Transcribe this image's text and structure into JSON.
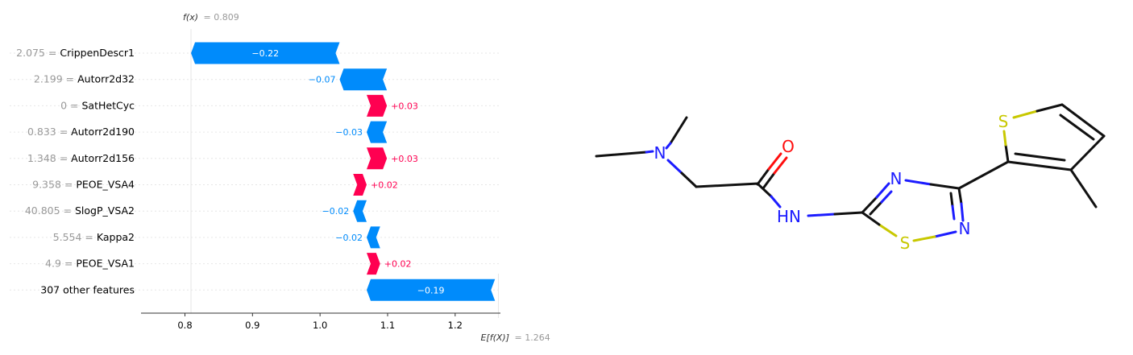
{
  "chart_data": {
    "type": "waterfall",
    "fx_label": "f(x)",
    "fx_value": "= 0.809",
    "fx": 0.809,
    "ex_label": "E[f(X)]",
    "ex_value": "= 1.264",
    "ex": 1.264,
    "xlim": [
      0.735,
      1.267
    ],
    "ticks": [
      "0.8",
      "0.9",
      "1.0",
      "1.1",
      "1.2"
    ],
    "tick_values": [
      0.8,
      0.9,
      1.0,
      1.1,
      1.2
    ],
    "colors": {
      "negative": "#008bfb",
      "positive": "#ff0051",
      "grid": "#e6e6e6",
      "value_label": "#999999"
    },
    "features": [
      {
        "value": "2.075",
        "name": "CrippenDescr1",
        "shap": -0.22,
        "label": "−0.22"
      },
      {
        "value": "2.199",
        "name": "Autorr2d32",
        "shap": -0.07,
        "label": "−0.07"
      },
      {
        "value": "0",
        "name": "SatHetCyc",
        "shap": 0.03,
        "label": "+0.03"
      },
      {
        "value": "0.833",
        "name": "Autorr2d190",
        "shap": -0.03,
        "label": "−0.03"
      },
      {
        "value": "1.348",
        "name": "Autorr2d156",
        "shap": 0.03,
        "label": "+0.03"
      },
      {
        "value": "9.358",
        "name": "PEOE_VSA4",
        "shap": 0.02,
        "label": "+0.02"
      },
      {
        "value": "40.805",
        "name": "SlogP_VSA2",
        "shap": -0.02,
        "label": "−0.02"
      },
      {
        "value": "5.554",
        "name": "Kappa2",
        "shap": -0.02,
        "label": "−0.02"
      },
      {
        "value": "4.9",
        "name": "PEOE_VSA1",
        "shap": 0.02,
        "label": "+0.02"
      },
      {
        "value": "",
        "name": "307 other features",
        "shap": -0.19,
        "label": "−0.19"
      }
    ]
  },
  "molecule": {
    "atom_labels": [
      "N",
      "O",
      "HN",
      "N",
      "S",
      "N",
      "S"
    ]
  }
}
